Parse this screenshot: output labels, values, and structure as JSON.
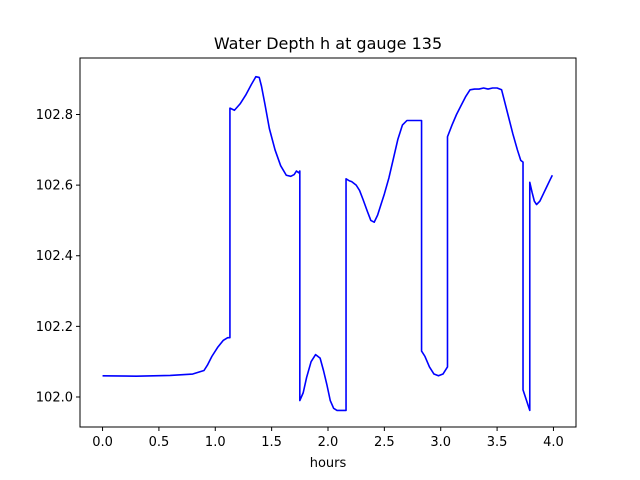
{
  "chart_data": {
    "type": "line",
    "title": "Water Depth h at gauge 135",
    "xlabel": "hours",
    "ylabel": "",
    "xlim": [
      -0.2,
      4.2
    ],
    "ylim": [
      101.915,
      102.96
    ],
    "xticks": [
      0.0,
      0.5,
      1.0,
      1.5,
      2.0,
      2.5,
      3.0,
      3.5,
      4.0
    ],
    "xtick_labels": [
      "0.0",
      "0.5",
      "1.0",
      "1.5",
      "2.0",
      "2.5",
      "3.0",
      "3.5",
      "4.0"
    ],
    "yticks": [
      102.0,
      102.2,
      102.4,
      102.6,
      102.8
    ],
    "ytick_labels": [
      "102.0",
      "102.2",
      "102.4",
      "102.6",
      "102.8"
    ],
    "grid": false,
    "legend": "none",
    "series": [
      {
        "color": "#0000ff",
        "x": [
          0.0,
          0.3,
          0.6,
          0.8,
          0.9,
          0.93,
          0.97,
          1.02,
          1.07,
          1.11,
          1.13,
          1.13,
          1.17,
          1.22,
          1.27,
          1.32,
          1.36,
          1.39,
          1.41,
          1.44,
          1.48,
          1.53,
          1.58,
          1.63,
          1.67,
          1.7,
          1.72,
          1.74,
          1.75,
          1.75,
          1.78,
          1.81,
          1.85,
          1.89,
          1.93,
          1.96,
          1.99,
          2.02,
          2.05,
          2.08,
          2.11,
          2.13,
          2.15,
          2.16,
          2.16,
          2.19,
          2.21,
          2.25,
          2.28,
          2.31,
          2.35,
          2.38,
          2.41,
          2.44,
          2.47,
          2.5,
          2.54,
          2.58,
          2.62,
          2.66,
          2.7,
          2.73,
          2.75,
          2.77,
          2.8,
          2.82,
          2.83,
          2.83,
          2.86,
          2.9,
          2.94,
          2.98,
          3.02,
          3.05,
          3.06,
          3.06,
          3.1,
          3.14,
          3.18,
          3.22,
          3.26,
          3.3,
          3.34,
          3.38,
          3.42,
          3.46,
          3.5,
          3.54,
          3.56,
          3.6,
          3.64,
          3.68,
          3.71,
          3.73,
          3.73,
          3.79,
          3.79,
          3.81,
          3.83,
          3.85,
          3.88,
          3.91,
          3.94,
          3.97,
          3.99
        ],
        "y": [
          102.06,
          102.059,
          102.061,
          102.065,
          102.075,
          102.09,
          102.115,
          102.14,
          102.16,
          102.168,
          102.168,
          102.818,
          102.812,
          102.83,
          102.855,
          102.885,
          102.907,
          102.905,
          102.88,
          102.83,
          102.76,
          102.7,
          102.655,
          102.628,
          102.625,
          102.63,
          102.64,
          102.635,
          102.64,
          101.99,
          102.012,
          102.055,
          102.1,
          102.12,
          102.11,
          102.075,
          102.035,
          101.99,
          101.968,
          101.962,
          101.962,
          101.962,
          101.962,
          101.962,
          102.618,
          102.612,
          102.61,
          102.6,
          102.585,
          102.56,
          102.525,
          102.5,
          102.495,
          102.515,
          102.545,
          102.575,
          102.62,
          102.675,
          102.73,
          102.77,
          102.783,
          102.783,
          102.783,
          102.783,
          102.783,
          102.783,
          102.783,
          102.13,
          102.115,
          102.085,
          102.065,
          102.06,
          102.065,
          102.08,
          102.085,
          102.737,
          102.77,
          102.8,
          102.825,
          102.85,
          102.87,
          102.872,
          102.872,
          102.875,
          102.872,
          102.875,
          102.875,
          102.87,
          102.845,
          102.795,
          102.745,
          102.7,
          102.67,
          102.665,
          102.02,
          101.962,
          102.608,
          102.58,
          102.555,
          102.545,
          102.555,
          102.575,
          102.595,
          102.615,
          102.628
        ]
      }
    ]
  }
}
